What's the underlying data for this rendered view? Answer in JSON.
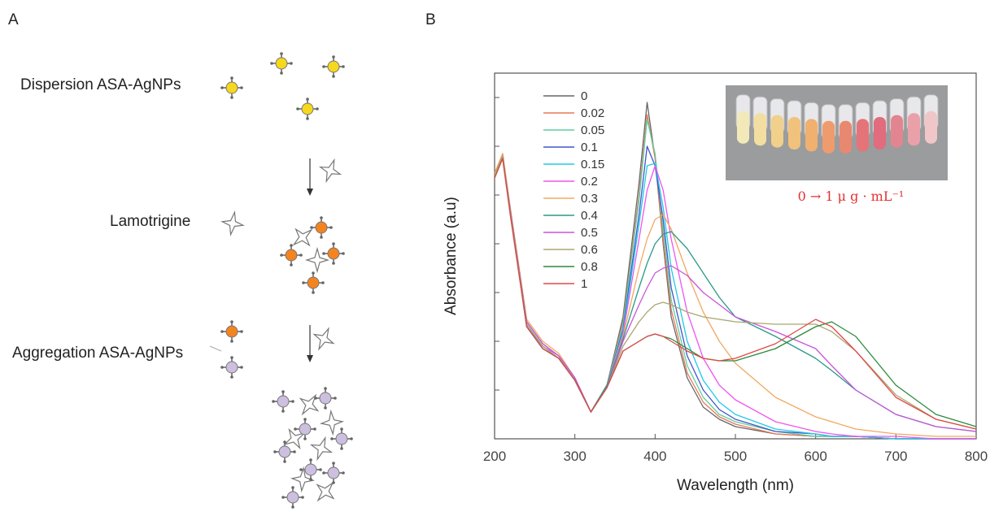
{
  "panel_a": {
    "label": "A",
    "steps": [
      "Dispersion ASA-AgNPs",
      "Lamotrigine",
      "Aggregation ASA-AgNPs"
    ]
  },
  "chart_data": {
    "type": "line",
    "panel_label": "B",
    "xlabel": "Wavelength (nm)",
    "ylabel": "Absorbance (a.u)",
    "inset_caption": "0 → 1 μ g · mL⁻¹",
    "x": [
      200,
      210,
      220,
      240,
      260,
      280,
      300,
      320,
      340,
      360,
      380,
      390,
      400,
      410,
      420,
      440,
      460,
      480,
      500,
      550,
      600,
      620,
      650,
      700,
      750,
      800
    ],
    "xlim": [
      200,
      800
    ],
    "xticks": [
      200,
      300,
      400,
      500,
      600,
      700,
      800
    ],
    "ylim": [
      0,
      1.5
    ],
    "yticks": [
      0.2,
      0.4,
      0.6,
      0.8,
      1.0,
      1.2,
      1.4
    ],
    "series": [
      {
        "name": "0",
        "color": "#666666",
        "values": [
          1.08,
          1.17,
          0.92,
          0.46,
          0.37,
          0.33,
          0.24,
          0.11,
          0.22,
          0.5,
          1.05,
          1.38,
          1.15,
          0.8,
          0.5,
          0.25,
          0.13,
          0.08,
          0.05,
          0.02,
          0.01,
          0.01,
          0.01,
          0,
          0,
          0
        ]
      },
      {
        "name": "0.02",
        "color": "#e8765a",
        "values": [
          1.08,
          1.17,
          0.92,
          0.46,
          0.37,
          0.33,
          0.24,
          0.11,
          0.22,
          0.48,
          1.0,
          1.33,
          1.15,
          0.82,
          0.53,
          0.27,
          0.15,
          0.09,
          0.06,
          0.02,
          0.01,
          0.01,
          0.01,
          0,
          0,
          0
        ]
      },
      {
        "name": "0.05",
        "color": "#5fcf9f",
        "values": [
          1.08,
          1.16,
          0.92,
          0.46,
          0.37,
          0.33,
          0.24,
          0.11,
          0.22,
          0.47,
          0.98,
          1.31,
          1.17,
          0.86,
          0.57,
          0.3,
          0.17,
          0.1,
          0.07,
          0.03,
          0.01,
          0.01,
          0.01,
          0,
          0,
          0
        ]
      },
      {
        "name": "0.1",
        "color": "#4055c8",
        "values": [
          1.08,
          1.16,
          0.92,
          0.46,
          0.37,
          0.33,
          0.24,
          0.11,
          0.22,
          0.45,
          0.92,
          1.2,
          1.12,
          0.9,
          0.62,
          0.34,
          0.2,
          0.12,
          0.08,
          0.03,
          0.02,
          0.01,
          0.01,
          0,
          0,
          0
        ]
      },
      {
        "name": "0.15",
        "color": "#22c8e8",
        "values": [
          1.08,
          1.16,
          0.92,
          0.46,
          0.38,
          0.33,
          0.24,
          0.11,
          0.22,
          0.44,
          0.88,
          1.12,
          1.13,
          0.95,
          0.7,
          0.4,
          0.24,
          0.15,
          0.1,
          0.04,
          0.02,
          0.01,
          0.01,
          0,
          0,
          0
        ]
      },
      {
        "name": "0.2",
        "color": "#ee55ee",
        "values": [
          1.08,
          1.16,
          0.93,
          0.47,
          0.38,
          0.34,
          0.25,
          0.11,
          0.22,
          0.43,
          0.82,
          1.02,
          1.12,
          1.02,
          0.82,
          0.52,
          0.33,
          0.22,
          0.16,
          0.07,
          0.03,
          0.02,
          0.01,
          0.01,
          0,
          0
        ]
      },
      {
        "name": "0.3",
        "color": "#f2a860",
        "values": [
          1.09,
          1.17,
          0.94,
          0.49,
          0.4,
          0.35,
          0.25,
          0.11,
          0.22,
          0.42,
          0.7,
          0.82,
          0.9,
          0.92,
          0.86,
          0.68,
          0.52,
          0.4,
          0.31,
          0.17,
          0.09,
          0.07,
          0.04,
          0.02,
          0.01,
          0.01
        ]
      },
      {
        "name": "0.4",
        "color": "#2a9a8a",
        "values": [
          1.08,
          1.16,
          0.93,
          0.48,
          0.39,
          0.34,
          0.25,
          0.11,
          0.22,
          0.41,
          0.62,
          0.72,
          0.8,
          0.84,
          0.85,
          0.78,
          0.68,
          0.58,
          0.5,
          0.42,
          0.33,
          0.28,
          0.2,
          0.1,
          0.05,
          0.03
        ]
      },
      {
        "name": "0.5",
        "color": "#c855d8",
        "values": [
          1.08,
          1.16,
          0.93,
          0.48,
          0.39,
          0.34,
          0.25,
          0.11,
          0.21,
          0.4,
          0.55,
          0.62,
          0.68,
          0.7,
          0.71,
          0.67,
          0.6,
          0.55,
          0.5,
          0.44,
          0.37,
          0.3,
          0.2,
          0.1,
          0.05,
          0.03
        ]
      },
      {
        "name": "0.6",
        "color": "#a8a870",
        "values": [
          1.08,
          1.16,
          0.92,
          0.47,
          0.38,
          0.33,
          0.24,
          0.11,
          0.21,
          0.38,
          0.48,
          0.52,
          0.55,
          0.56,
          0.55,
          0.52,
          0.5,
          0.49,
          0.48,
          0.47,
          0.47,
          0.44,
          0.36,
          0.18,
          0.08,
          0.04
        ]
      },
      {
        "name": "0.8",
        "color": "#2a8a3a",
        "values": [
          1.07,
          1.15,
          0.91,
          0.46,
          0.37,
          0.33,
          0.24,
          0.11,
          0.21,
          0.36,
          0.4,
          0.42,
          0.43,
          0.42,
          0.41,
          0.37,
          0.33,
          0.32,
          0.32,
          0.37,
          0.46,
          0.48,
          0.42,
          0.22,
          0.1,
          0.05
        ]
      },
      {
        "name": "1",
        "color": "#e04848",
        "values": [
          1.07,
          1.15,
          0.91,
          0.46,
          0.37,
          0.33,
          0.24,
          0.11,
          0.21,
          0.36,
          0.4,
          0.42,
          0.43,
          0.42,
          0.4,
          0.36,
          0.33,
          0.32,
          0.33,
          0.39,
          0.49,
          0.46,
          0.36,
          0.17,
          0.08,
          0.04
        ]
      }
    ]
  }
}
